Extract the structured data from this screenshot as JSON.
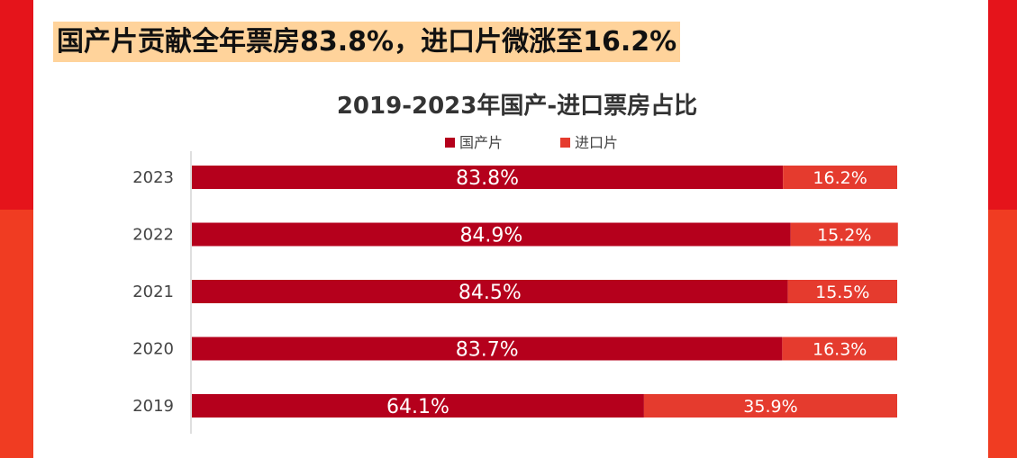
{
  "headline": "国产片贡献全年票房83.8%，进口片微涨至16.2%",
  "colors": {
    "domestic": "#b5001c",
    "imported": "#e53b2e",
    "side_top": "#e5141b",
    "side_bottom": "#f03c22",
    "headline_bg": "#ffd39b"
  },
  "chart_data": {
    "type": "bar",
    "orientation": "horizontal",
    "stacked": true,
    "title": "2019-2023年国产-进口票房占比",
    "legend_position": "top",
    "categories": [
      "2023",
      "2022",
      "2021",
      "2020",
      "2019"
    ],
    "series": [
      {
        "name": "国产片",
        "values": [
          83.8,
          84.9,
          84.5,
          83.7,
          64.1
        ],
        "labels": [
          "83.8%",
          "84.9%",
          "84.5%",
          "83.7%",
          "64.1%"
        ]
      },
      {
        "name": "进口片",
        "values": [
          16.2,
          15.2,
          15.5,
          16.3,
          35.9
        ],
        "labels": [
          "16.2%",
          "15.2%",
          "15.5%",
          "16.3%",
          "35.9%"
        ]
      }
    ],
    "xlim": [
      0,
      100
    ],
    "grid": false
  }
}
